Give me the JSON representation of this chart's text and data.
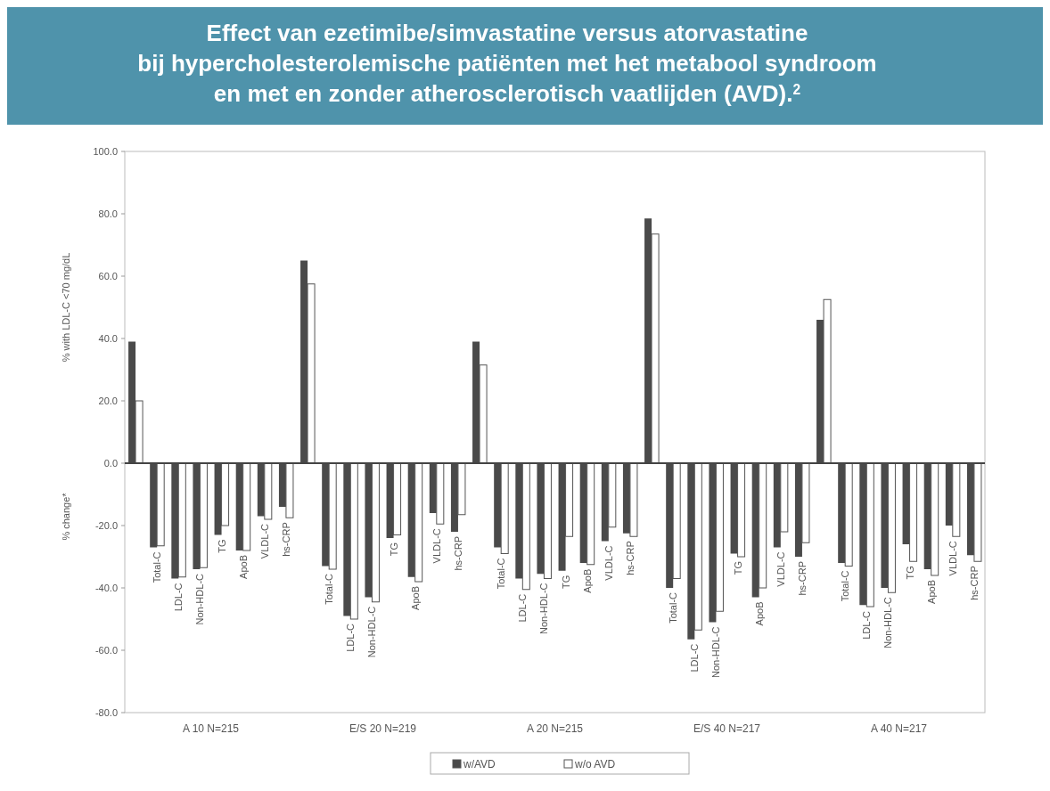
{
  "chart_data": {
    "type": "bar",
    "title": "Effect van ezetimibe/simvastatine versus atorvastatine\nbij hypercholesterolemische patiënten met het metabool syndroom\nen met en zonder atherosclerotisch vaatlijden (AVD).$^{2}$",
    "ylabel": "% with LDL-C <70 mg/dL",
    "annotations": [
      "% change*",
      "A 10  N=215",
      "E/S 20  N=219",
      "A 20  N=215",
      "E/S 40  N=217",
      "A 40  N=217"
    ],
    "categories": [
      null,
      "Total-C",
      "LDL-C",
      "Non-HDL-C",
      "TG",
      "ApoB",
      "VLDL-C",
      "hs-CRP",
      null,
      "Total-C",
      "LDL-C",
      "Non-HDL-C",
      "TG",
      "ApoB",
      "VLDL-C",
      "hs-CRP",
      null,
      "Total-C",
      "LDL-C",
      "Non-HDL-C",
      "TG",
      "ApoB",
      "VLDL-C",
      "hs-CRP",
      null,
      "Total-C",
      "LDL-C",
      "Non-HDL-C",
      "TG",
      "ApoB",
      "VLDL-C",
      "hs-CRP",
      null,
      "Total-C",
      "LDL-C",
      "Non-HDL-C",
      "TG",
      "ApoB",
      "VLDL-C",
      "hs-CRP"
    ],
    "series": [
      {
        "name": "w/AVD",
        "color": "#4a4a4a",
        "values": [
          39,
          -27,
          -37,
          -34,
          -23,
          -28,
          -17,
          -14,
          65,
          -33,
          -49,
          -43,
          -24,
          -36.5,
          -16,
          -22,
          39,
          -27,
          -37,
          -35.5,
          -34.5,
          -32,
          -25,
          -22.5,
          78.5,
          -40,
          -56.5,
          -51,
          -29,
          -43,
          -27,
          -30,
          46,
          -32,
          -45.5,
          -40,
          -26,
          -34,
          -20,
          -29.5
        ]
      },
      {
        "name": "w/o AVD",
        "color": "#ffffff",
        "values": [
          20,
          -26.5,
          -36.5,
          -33.5,
          -20,
          -28,
          -18,
          -17.5,
          57.5,
          -34,
          -50,
          -44.5,
          -23,
          -38,
          -19.5,
          -16.5,
          31.5,
          -29,
          -40.5,
          -37,
          -23.5,
          -32.5,
          -20.5,
          -23.5,
          73.5,
          -37,
          -53.5,
          -47.5,
          -30,
          -40,
          -22,
          -25.5,
          52.5,
          -33,
          -46,
          -41.5,
          -31.5,
          -36,
          -23.5,
          -31.5
        ]
      }
    ],
    "ylim": [
      -80,
      100
    ],
    "yticks": [
      {
        "value": -80,
        "label": "-80.0"
      },
      {
        "value": -60,
        "label": "-60.0"
      },
      {
        "value": -40,
        "label": "-40.0"
      },
      {
        "value": -20,
        "label": "-20.0"
      },
      {
        "value": 0,
        "label": "0.0"
      },
      {
        "value": 20,
        "label": "20.0"
      },
      {
        "value": 40,
        "label": "40.0"
      },
      {
        "value": 60,
        "label": "60.0"
      },
      {
        "value": 80,
        "label": "80.0"
      },
      {
        "value": 100,
        "label": "100.0"
      }
    ],
    "legend": "bottom"
  }
}
